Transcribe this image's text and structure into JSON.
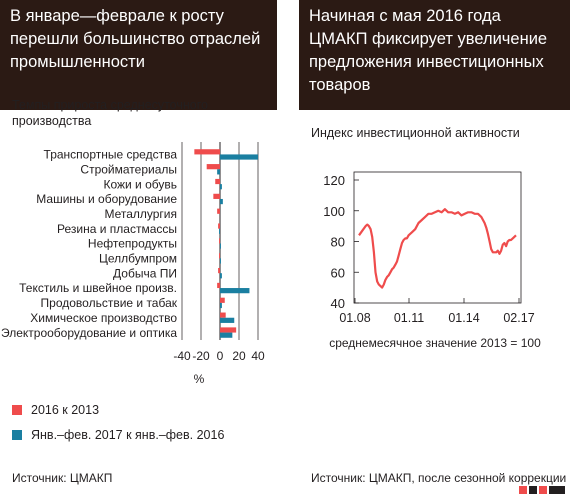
{
  "left": {
    "title": "В январе—феврале к росту перешли большинство отраслей промышленности",
    "subtitle": "Темпы прироста среднесуточного производства",
    "source": "Источник: ЦМАКП",
    "legend": [
      {
        "label": "2016 к 2013",
        "color": "#ef4c4c"
      },
      {
        "label": "Янв.–фев. 2017 к янв.–фев. 2016",
        "color": "#1a7fa1"
      }
    ]
  },
  "right": {
    "title": "Начиная с мая 2016 года ЦМАКП фиксирует увеличение предложения инвестиционных товаров",
    "subtitle": "Индекс инвестиционной активности",
    "source": "Источник: ЦМАКП, после сезонной коррекции"
  },
  "chart_data": [
    {
      "type": "bar",
      "orientation": "horizontal",
      "categories": [
        "Транспортные средства",
        "Стройматериалы",
        "Кожи и обувь",
        "Машины и оборудование",
        "Металлургия",
        "Резина и пластмассы",
        "Нефтепродукты",
        "Целлбумпром",
        "Добыча ПИ",
        "Текстиль и швейное произв.",
        "Продовольствие и табак",
        "Химическое производство",
        "Электрооборудование и оптика"
      ],
      "series": [
        {
          "name": "2016 к 2013",
          "color": "#ef4c4c",
          "values": [
            -27,
            -14,
            -5,
            -7,
            -3,
            -2,
            -1,
            -1,
            -2,
            -3,
            5,
            6,
            17
          ]
        },
        {
          "name": "Янв.–фев. 2017 к янв.–фев. 2016",
          "color": "#1a7fa1",
          "values": [
            40,
            -3,
            2,
            3,
            0,
            -1,
            1,
            1,
            2,
            31,
            2,
            15,
            13
          ]
        }
      ],
      "xlim": [
        -40,
        40
      ],
      "xticks": [
        "-40",
        "-20",
        "0",
        "20",
        "40"
      ],
      "xlabel": "%"
    },
    {
      "type": "line",
      "series": [
        {
          "color": "#ef4c4c",
          "values": [
            [
              0,
              84
            ],
            [
              2,
              87
            ],
            [
              4,
              90
            ],
            [
              5,
              91
            ],
            [
              6,
              90
            ],
            [
              7,
              88
            ],
            [
              8,
              83
            ],
            [
              9,
              73
            ],
            [
              10,
              60
            ],
            [
              11,
              54
            ],
            [
              12,
              52
            ],
            [
              13,
              51
            ],
            [
              14,
              50
            ],
            [
              15,
              52
            ],
            [
              16,
              55
            ],
            [
              17,
              57
            ],
            [
              18,
              58
            ],
            [
              19,
              60
            ],
            [
              20,
              62
            ],
            [
              21,
              63
            ],
            [
              22,
              65
            ],
            [
              23,
              67
            ],
            [
              24,
              71
            ],
            [
              25,
              75
            ],
            [
              26,
              79
            ],
            [
              27,
              81
            ],
            [
              28,
              82
            ],
            [
              29,
              82
            ],
            [
              30,
              84
            ],
            [
              32,
              86
            ],
            [
              34,
              88
            ],
            [
              36,
              92
            ],
            [
              38,
              94
            ],
            [
              40,
              96
            ],
            [
              42,
              98
            ],
            [
              44,
              98
            ],
            [
              46,
              99
            ],
            [
              48,
              100
            ],
            [
              50,
              99
            ],
            [
              52,
              101
            ],
            [
              54,
              99
            ],
            [
              56,
              99
            ],
            [
              58,
              98
            ],
            [
              60,
              99
            ],
            [
              62,
              97
            ],
            [
              64,
              98
            ],
            [
              66,
              99
            ],
            [
              68,
              99
            ],
            [
              70,
              98
            ],
            [
              72,
              98
            ],
            [
              74,
              96
            ],
            [
              76,
              92
            ],
            [
              77,
              89
            ],
            [
              78,
              85
            ],
            [
              79,
              80
            ],
            [
              80,
              75
            ],
            [
              81,
              73
            ],
            [
              82,
              73
            ],
            [
              83,
              73
            ],
            [
              84,
              74
            ],
            [
              85,
              72
            ],
            [
              86,
              74
            ],
            [
              87,
              78
            ],
            [
              88,
              79
            ],
            [
              89,
              77
            ],
            [
              90,
              80
            ],
            [
              91,
              81
            ],
            [
              92,
              81
            ],
            [
              93,
              82
            ],
            [
              94,
              83
            ],
            [
              95,
              84
            ]
          ]
        }
      ],
      "x_tick_labels": [
        "01.08",
        "01.11",
        "01.14",
        "02.17"
      ],
      "ylim": [
        40,
        120
      ],
      "yticks": [
        40,
        60,
        80,
        100,
        120
      ],
      "xlabel": "среднемесячное значение 2013 = 100"
    }
  ]
}
